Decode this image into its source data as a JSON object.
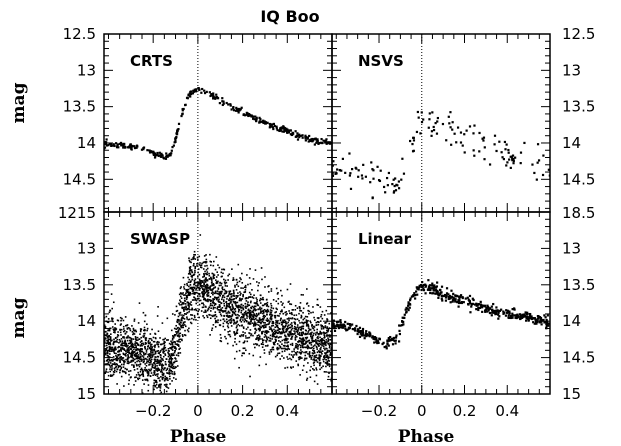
{
  "figure": {
    "title": "IQ Boo",
    "ylabel": "mag",
    "xlabel": "Phase"
  },
  "chart_data": [
    {
      "type": "scatter",
      "label": "CRTS",
      "xlim": [
        -0.42,
        0.6
      ],
      "ylim": [
        14.95,
        12.5
      ],
      "phase_marker": 0.0,
      "curve_x": [
        -0.42,
        -0.35,
        -0.3,
        -0.25,
        -0.2,
        -0.15,
        -0.12,
        -0.1,
        -0.08,
        -0.06,
        -0.04,
        -0.02,
        0.0,
        0.02,
        0.05,
        0.1,
        0.15,
        0.2,
        0.25,
        0.3,
        0.35,
        0.4,
        0.45,
        0.5,
        0.55,
        0.6
      ],
      "curve_y": [
        14.02,
        14.03,
        14.04,
        14.08,
        14.14,
        14.18,
        14.15,
        13.95,
        13.7,
        13.5,
        13.35,
        13.28,
        13.25,
        13.27,
        13.32,
        13.42,
        13.5,
        13.58,
        13.66,
        13.72,
        13.78,
        13.84,
        13.9,
        13.95,
        13.98,
        14.01
      ],
      "scatter_mag": 0.02,
      "n_points": 350
    },
    {
      "type": "scatter",
      "label": "NSVS",
      "xlim": [
        -0.42,
        0.6
      ],
      "ylim": [
        14.95,
        12.5
      ],
      "phase_marker": 0.0,
      "curve_x": [
        -0.42,
        -0.35,
        -0.3,
        -0.25,
        -0.2,
        -0.15,
        -0.1,
        -0.08,
        -0.05,
        -0.02,
        0.0,
        0.03,
        0.06,
        0.1,
        0.15,
        0.2,
        0.25,
        0.3,
        0.35,
        0.4,
        0.45,
        0.5,
        0.55,
        0.6
      ],
      "curve_y": [
        14.3,
        14.35,
        14.4,
        14.45,
        14.5,
        14.55,
        14.6,
        14.4,
        14.0,
        13.8,
        13.72,
        13.68,
        13.7,
        13.75,
        13.82,
        13.88,
        13.95,
        14.0,
        14.08,
        14.15,
        14.22,
        14.28,
        14.33,
        14.38
      ],
      "scatter_mag": 0.12,
      "n_points": 150
    },
    {
      "type": "scatter",
      "label": "SWASP",
      "xlim": [
        -0.42,
        0.6
      ],
      "ylim": [
        15.0,
        12.5
      ],
      "phase_marker": 0.0,
      "curve_x": [
        -0.42,
        -0.35,
        -0.3,
        -0.25,
        -0.2,
        -0.15,
        -0.12,
        -0.1,
        -0.08,
        -0.06,
        -0.04,
        -0.02,
        0.0,
        0.02,
        0.05,
        0.1,
        0.15,
        0.2,
        0.25,
        0.3,
        0.35,
        0.4,
        0.45,
        0.5,
        0.55,
        0.6
      ],
      "curve_y": [
        14.35,
        14.37,
        14.4,
        14.45,
        14.52,
        14.58,
        14.5,
        14.3,
        14.0,
        13.8,
        13.6,
        13.5,
        13.45,
        13.5,
        13.6,
        13.72,
        13.8,
        13.88,
        13.95,
        14.02,
        14.08,
        14.14,
        14.2,
        14.25,
        14.3,
        14.35
      ],
      "scatter_mag": 0.22,
      "n_points": 3200
    },
    {
      "type": "scatter",
      "label": "Linear",
      "xlim": [
        -0.42,
        0.6
      ],
      "ylim": [
        15.0,
        12.5
      ],
      "phase_marker": 0.0,
      "curve_x": [
        -0.42,
        -0.35,
        -0.3,
        -0.25,
        -0.2,
        -0.18,
        -0.15,
        -0.12,
        -0.1,
        -0.08,
        -0.05,
        -0.02,
        0.0,
        0.02,
        0.05,
        0.1,
        0.15,
        0.2,
        0.25,
        0.3,
        0.35,
        0.4,
        0.45,
        0.5,
        0.55,
        0.6
      ],
      "curve_y": [
        14.05,
        14.08,
        14.12,
        14.2,
        14.3,
        14.3,
        14.28,
        14.25,
        14.1,
        13.9,
        13.7,
        13.55,
        13.5,
        13.52,
        13.55,
        13.62,
        13.68,
        13.73,
        13.78,
        13.83,
        13.87,
        13.9,
        13.93,
        13.95,
        13.98,
        14.02
      ],
      "scatter_mag": 0.04,
      "n_points": 500
    }
  ],
  "axes": {
    "xticks": [
      -0.2,
      0,
      0.2,
      0.4
    ],
    "xtick_labels": [
      "−0.2",
      "0",
      "0.2",
      "0.4"
    ],
    "yticks_top": [
      12.5,
      13,
      13.5,
      14,
      14.5
    ],
    "ytick_labels_top": [
      "12.5",
      "13",
      "13.5",
      "14",
      "14.5"
    ],
    "yticks_bottom": [
      13,
      13.5,
      14,
      14.5,
      15
    ],
    "ytick_labels_bottom": [
      "13",
      "13.5",
      "14",
      "14.5",
      "15"
    ],
    "boundary_label_left": "1215",
    "boundary_label_right": "18.5"
  }
}
